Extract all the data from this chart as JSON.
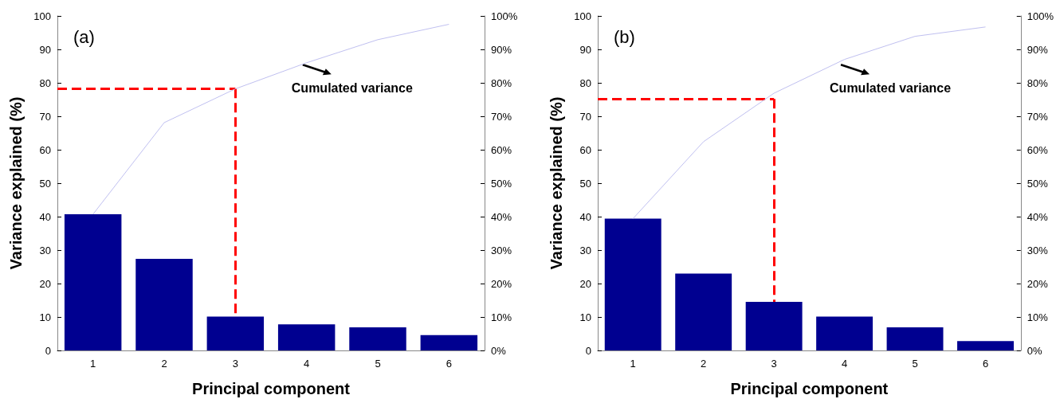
{
  "chart_data": [
    {
      "type": "bar",
      "title": "(a)",
      "xlabel": "Principal component",
      "ylabel": "Variance explained (%)",
      "marker": "none",
      "x": [
        1,
        2,
        3,
        4,
        5,
        6
      ],
      "xlim": [
        0.5,
        6.5
      ],
      "xticks": [
        1,
        2,
        3,
        4,
        5,
        6
      ],
      "ylim": [
        0,
        100
      ],
      "yticks": [
        0,
        10,
        20,
        30,
        40,
        50,
        60,
        70,
        80,
        90,
        100
      ],
      "y2lim": [
        0,
        100
      ],
      "y2ticks": [
        {
          "value": 0,
          "label": "0%"
        },
        {
          "value": 10,
          "label": "10%"
        },
        {
          "value": 20,
          "label": "20%"
        },
        {
          "value": 30,
          "label": "30%"
        },
        {
          "value": 40,
          "label": "40%"
        },
        {
          "value": 50,
          "label": "50%"
        },
        {
          "value": 60,
          "label": "60%"
        },
        {
          "value": 70,
          "label": "70%"
        },
        {
          "value": 80,
          "label": "80%"
        },
        {
          "value": 90,
          "label": "90%"
        },
        {
          "value": 100,
          "label": "100%"
        }
      ],
      "series": [
        {
          "color": "#000090",
          "values": [
            40.7,
            27.4,
            10.1,
            7.8,
            6.9,
            4.6
          ]
        },
        {
          "type": "line",
          "color": "#c0c0f0",
          "values": [
            40.7,
            68.1,
            78.2,
            86.0,
            92.9,
            97.5
          ]
        }
      ],
      "ref_lines": [
        {
          "axis": "y",
          "value": 78.3,
          "color": "#ff0000",
          "line_style": "dashed"
        },
        {
          "axis": "x",
          "value": 3,
          "color": "#ff0000",
          "line_style": "dashed"
        }
      ],
      "annotations": [
        "Cumulated variance"
      ]
    },
    {
      "type": "bar",
      "title": "(b)",
      "xlabel": "Principal component",
      "ylabel": "Variance explained (%)",
      "marker": "none",
      "x": [
        1,
        2,
        3,
        4,
        5,
        6
      ],
      "xlim": [
        0.5,
        6.5
      ],
      "xticks": [
        1,
        2,
        3,
        4,
        5,
        6
      ],
      "ylim": [
        0,
        100
      ],
      "yticks": [
        0,
        10,
        20,
        30,
        40,
        50,
        60,
        70,
        80,
        90,
        100
      ],
      "y2lim": [
        0,
        100
      ],
      "y2ticks": [
        {
          "value": 0,
          "label": "0%"
        },
        {
          "value": 10,
          "label": "10%"
        },
        {
          "value": 20,
          "label": "20%"
        },
        {
          "value": 30,
          "label": "30%"
        },
        {
          "value": 40,
          "label": "40%"
        },
        {
          "value": 50,
          "label": "50%"
        },
        {
          "value": 60,
          "label": "60%"
        },
        {
          "value": 70,
          "label": "70%"
        },
        {
          "value": 80,
          "label": "80%"
        },
        {
          "value": 90,
          "label": "90%"
        },
        {
          "value": 100,
          "label": "100%"
        }
      ],
      "series": [
        {
          "color": "#000090",
          "values": [
            39.4,
            23.0,
            14.5,
            10.1,
            6.9,
            2.8
          ]
        },
        {
          "type": "line",
          "color": "#c0c0f0",
          "values": [
            39.4,
            62.4,
            76.9,
            87.0,
            93.9,
            96.7
          ]
        }
      ],
      "ref_lines": [
        {
          "axis": "y",
          "value": 75.2,
          "color": "#ff0000",
          "line_style": "dashed"
        },
        {
          "axis": "x",
          "value": 3,
          "color": "#ff0000",
          "line_style": "dashed"
        }
      ],
      "annotations": [
        "Cumulated variance"
      ]
    }
  ]
}
